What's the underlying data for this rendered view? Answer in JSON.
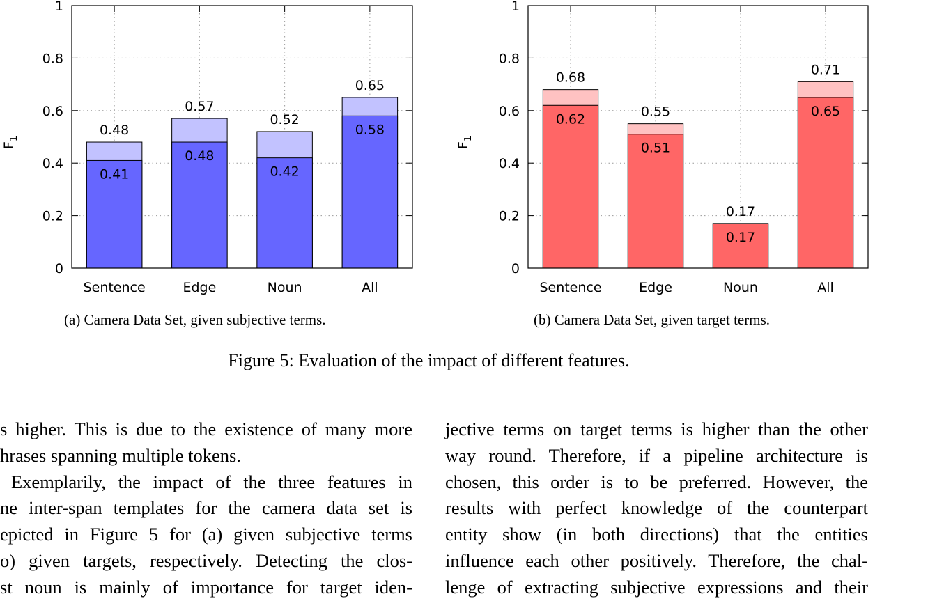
{
  "chart_data": [
    {
      "type": "bar",
      "stacked_overlay": true,
      "categories": [
        "Sentence",
        "Edge",
        "Noun",
        "All"
      ],
      "series": [
        {
          "values": [
            0.41,
            0.48,
            0.42,
            0.58
          ],
          "color": "#6666ff"
        },
        {
          "values": [
            0.48,
            0.57,
            0.52,
            0.65
          ],
          "color": "#c2c2ff"
        }
      ],
      "ylabel": "F",
      "ylabel_sub": "1",
      "ylim": [
        0,
        1
      ],
      "yticks": [
        "0",
        "0.2",
        "0.4",
        "0.6",
        "0.8",
        "1"
      ],
      "grid": true,
      "caption": "(a) Camera Data Set, given subjective terms."
    },
    {
      "type": "bar",
      "stacked_overlay": true,
      "categories": [
        "Sentence",
        "Edge",
        "Noun",
        "All"
      ],
      "series": [
        {
          "values": [
            0.62,
            0.51,
            0.17,
            0.65
          ],
          "color": "#ff6666"
        },
        {
          "values": [
            0.68,
            0.55,
            0.17,
            0.71
          ],
          "color": "#ffc2c2"
        }
      ],
      "ylabel": "F",
      "ylabel_sub": "1",
      "ylim": [
        0,
        1
      ],
      "yticks": [
        "0",
        "0.2",
        "0.4",
        "0.6",
        "0.8",
        "1"
      ],
      "grid": true,
      "caption": "(b) Camera Data Set, given target terms."
    }
  ],
  "figure_caption": "Figure 5: Evaluation of the impact of different features.",
  "left_column": [
    "s higher. This is due to the existence of many more",
    "hrases spanning multiple tokens.",
    "Exemplarily, the impact of the three features in",
    "ne inter-span templates for the camera data set is",
    "epicted in Figure 5 for (a) given subjective terms",
    "o) given targets, respectively. Detecting the clos-",
    "st noun is mainly of importance for target iden-"
  ],
  "right_column": [
    "jective terms on target terms is higher than the other",
    "way round. Therefore, if a pipeline architecture is",
    "chosen, this order is to be preferred. However, the",
    "results with perfect knowledge of the counterpart",
    "entity show (in both directions) that the entities",
    "influence each other positively. Therefore, the chal-",
    "lenge of extracting subjective expressions and their"
  ]
}
